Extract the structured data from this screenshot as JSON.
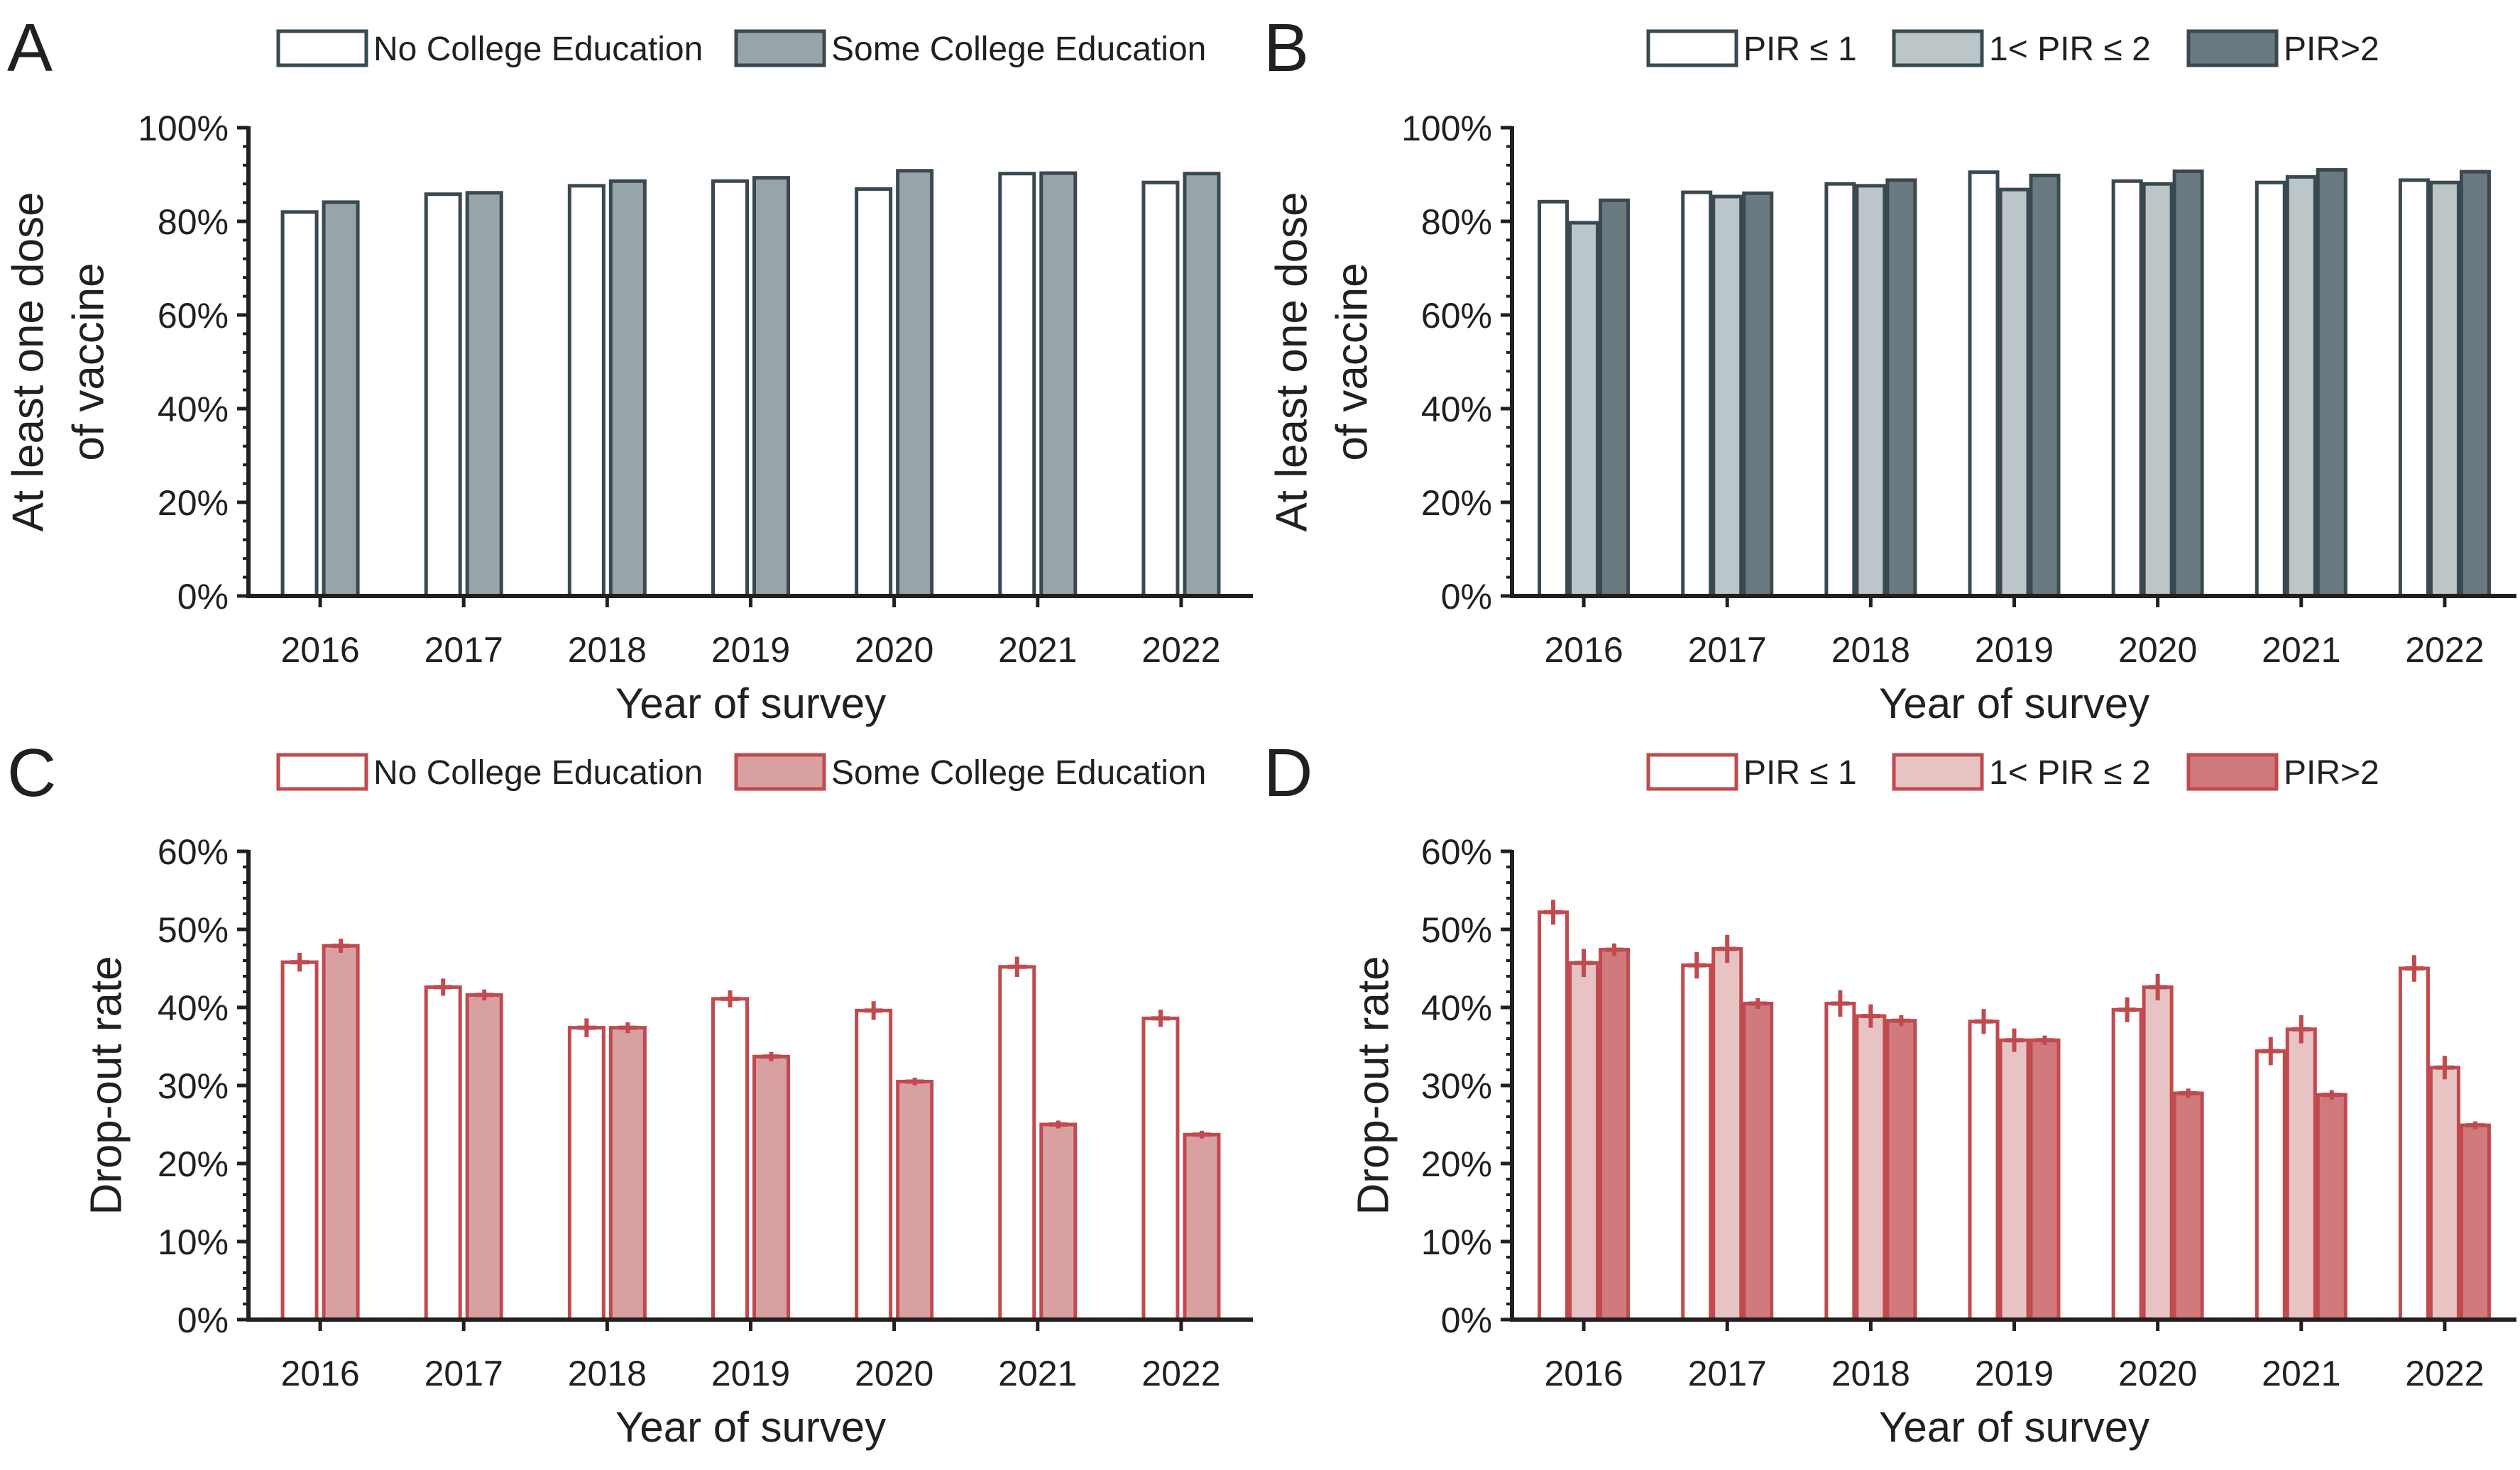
{
  "chart_data": [
    {
      "panel": "A",
      "type": "bar",
      "xlabel": "Year of survey",
      "ylabel": [
        "At least one dose",
        "of vaccine"
      ],
      "ylim": [
        0,
        100
      ],
      "yticks": [
        "0%",
        "20%",
        "40%",
        "60%",
        "80%",
        "100%"
      ],
      "categories": [
        "2016",
        "2017",
        "2018",
        "2019",
        "2020",
        "2021",
        "2022"
      ],
      "legend_position": "top",
      "series": [
        {
          "name": "No College Education",
          "fill": "#ffffff",
          "stroke": "#39494f",
          "values": [
            82.0,
            85.8,
            87.6,
            88.6,
            86.9,
            90.2,
            88.3
          ]
        },
        {
          "name": "Some College Education",
          "fill": "#98a5a8",
          "stroke": "#39494f",
          "values": [
            84.1,
            86.1,
            88.6,
            89.3,
            90.8,
            90.3,
            90.2
          ]
        }
      ]
    },
    {
      "panel": "B",
      "type": "bar",
      "xlabel": "Year of survey",
      "ylabel": [
        "At least one dose",
        "of vaccine"
      ],
      "ylim": [
        0,
        100
      ],
      "yticks": [
        "0%",
        "20%",
        "40%",
        "60%",
        "80%",
        "100%"
      ],
      "categories": [
        "2016",
        "2017",
        "2018",
        "2019",
        "2020",
        "2021",
        "2022"
      ],
      "legend_position": "top",
      "series": [
        {
          "name": "PIR ≤ 1",
          "fill": "#ffffff",
          "stroke": "#39494f",
          "values": [
            84.2,
            86.2,
            88.0,
            90.5,
            88.6,
            88.3,
            88.8
          ]
        },
        {
          "name": "1< PIR ≤ 2",
          "fill": "#bcc5c7",
          "stroke": "#39494f",
          "values": [
            79.7,
            85.3,
            87.6,
            86.8,
            88.0,
            89.5,
            88.3
          ]
        },
        {
          "name": "PIR>2",
          "fill": "#6b7a80",
          "stroke": "#39494f",
          "values": [
            84.5,
            86.0,
            88.8,
            89.8,
            90.7,
            91.0,
            90.6
          ]
        }
      ]
    },
    {
      "panel": "C",
      "type": "bar",
      "xlabel": "Year of survey",
      "ylabel": [
        "Drop-out rate"
      ],
      "ylim": [
        0,
        60
      ],
      "yticks": [
        "0%",
        "10%",
        "20%",
        "30%",
        "40%",
        "50%",
        "60%"
      ],
      "categories": [
        "2016",
        "2017",
        "2018",
        "2019",
        "2020",
        "2021",
        "2022"
      ],
      "legend_position": "top",
      "series": [
        {
          "name": "No College Education",
          "fill": "#ffffff",
          "stroke": "#c04a4e",
          "values": [
            45.8,
            42.6,
            37.4,
            41.1,
            39.6,
            45.2,
            38.6
          ],
          "err": [
            1.2,
            1.1,
            1.2,
            1.1,
            1.2,
            1.3,
            1.1
          ]
        },
        {
          "name": "Some College Education",
          "fill": "#d9a0a2",
          "stroke": "#c04a4e",
          "values": [
            47.9,
            41.6,
            37.4,
            33.7,
            30.5,
            25.0,
            23.7
          ],
          "err": [
            0.9,
            0.7,
            0.7,
            0.6,
            0.5,
            0.5,
            0.5
          ]
        }
      ]
    },
    {
      "panel": "D",
      "type": "bar",
      "xlabel": "Year of survey",
      "ylabel": [
        "Drop-out rate"
      ],
      "ylim": [
        0,
        60
      ],
      "yticks": [
        "0%",
        "10%",
        "20%",
        "30%",
        "40%",
        "50%",
        "60%"
      ],
      "categories": [
        "2016",
        "2017",
        "2018",
        "2019",
        "2020",
        "2021",
        "2022"
      ],
      "legend_position": "top",
      "series": [
        {
          "name": "PIR ≤ 1",
          "fill": "#ffffff",
          "stroke": "#c04a4e",
          "values": [
            52.2,
            45.4,
            40.5,
            38.2,
            39.7,
            34.4,
            45.0
          ],
          "err": [
            1.6,
            1.7,
            1.7,
            1.6,
            1.6,
            1.8,
            1.7
          ]
        },
        {
          "name": "1< PIR ≤ 2",
          "fill": "#e8c3c4",
          "stroke": "#c04a4e",
          "values": [
            45.7,
            47.5,
            38.9,
            35.8,
            42.6,
            37.2,
            32.3
          ],
          "err": [
            1.8,
            1.8,
            1.5,
            1.5,
            1.7,
            1.8,
            1.5
          ]
        },
        {
          "name": "PIR>2",
          "fill": "#d07a7d",
          "stroke": "#c04a4e",
          "values": [
            47.4,
            40.5,
            38.3,
            35.8,
            29.0,
            28.8,
            24.9
          ],
          "err": [
            0.8,
            0.7,
            0.7,
            0.6,
            0.6,
            0.6,
            0.5
          ]
        }
      ]
    }
  ]
}
